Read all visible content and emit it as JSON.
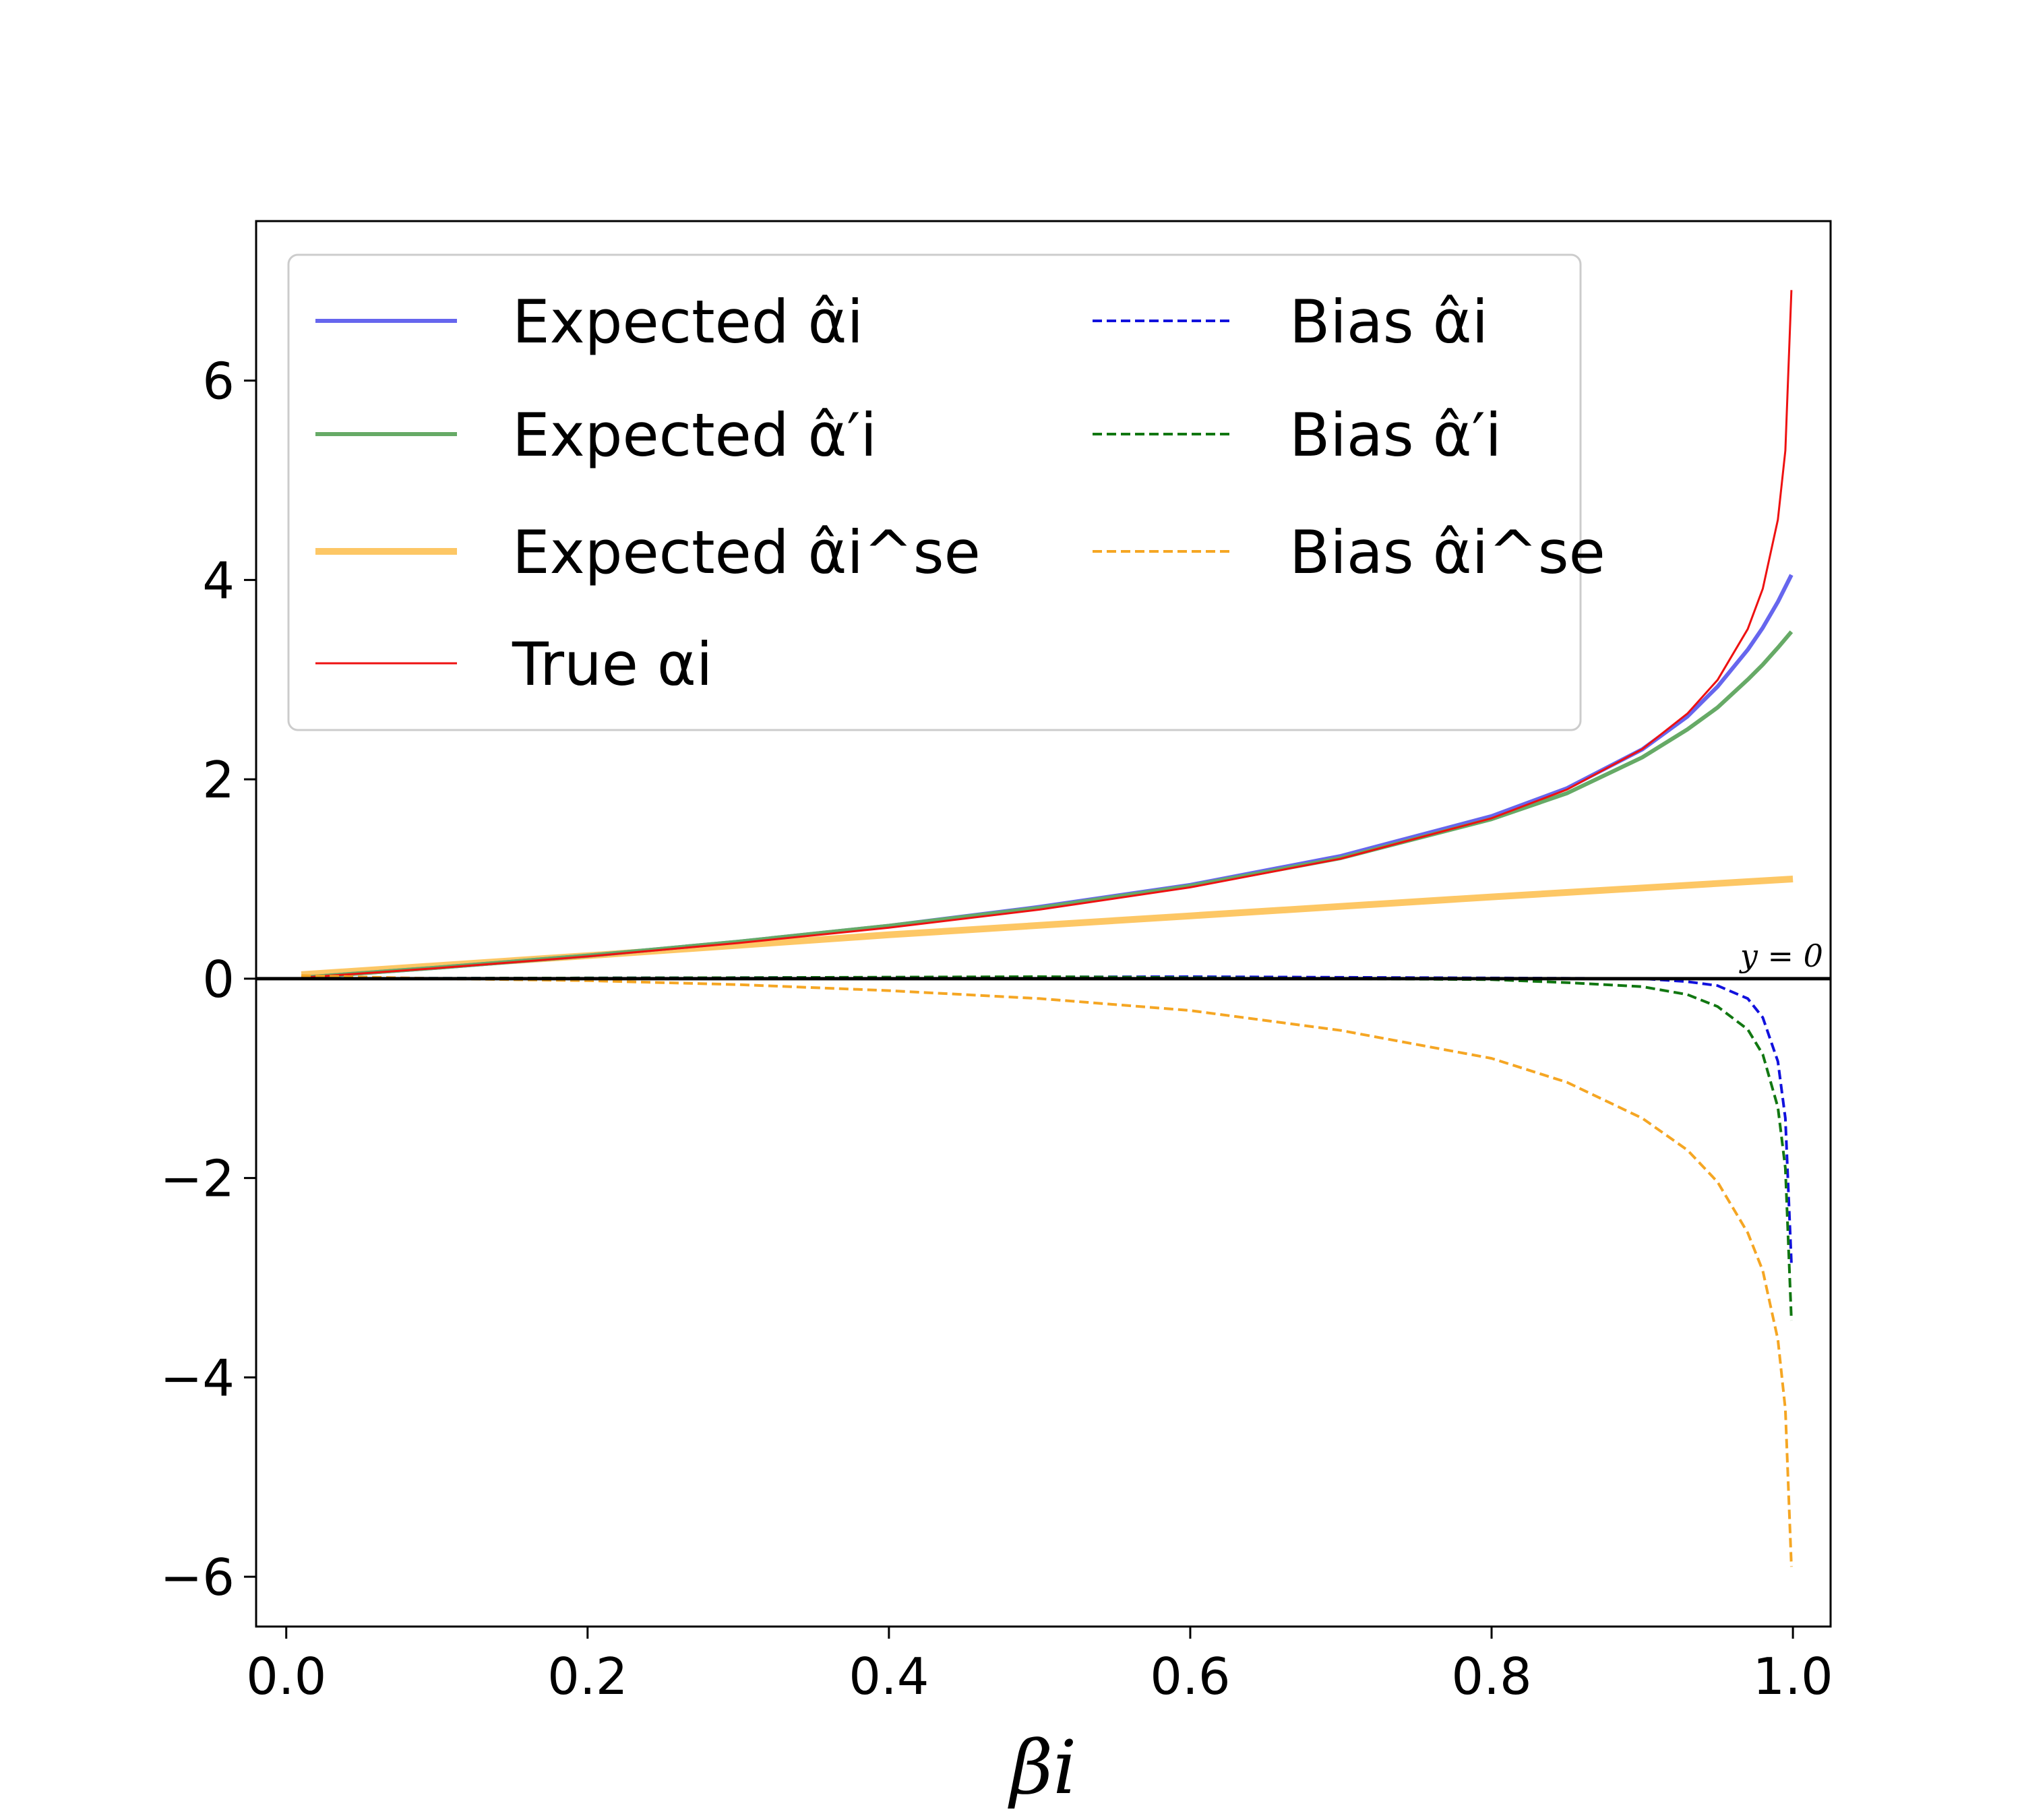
{
  "chart_data": {
    "type": "line",
    "title": "",
    "xlabel": "βi",
    "ylabel": "",
    "xlim": [
      -0.02,
      1.025
    ],
    "ylim": [
      -6.5,
      7.6
    ],
    "grid": false,
    "legend_position": "upper-left",
    "legend_columns": 2,
    "x_ticks": [
      "0.0",
      "0.2",
      "0.4",
      "0.6",
      "0.8",
      "1.0"
    ],
    "y_ticks": [
      "−6",
      "−4",
      "−2",
      "0",
      "2",
      "4",
      "6"
    ],
    "x_tick_values": [
      0.0,
      0.2,
      0.4,
      0.6,
      0.8,
      1.0
    ],
    "y_tick_values": [
      -6,
      -4,
      -2,
      0,
      2,
      4,
      6
    ],
    "reference_line": {
      "y": 0,
      "label": "y = 0",
      "color": "#000000"
    },
    "series": [
      {
        "name": "Expected α̂i",
        "color": "#6666ee",
        "style": "solid",
        "x": [
          0.01,
          0.1,
          0.2,
          0.3,
          0.4,
          0.5,
          0.6,
          0.7,
          0.8,
          0.85,
          0.9,
          0.93,
          0.95,
          0.97,
          0.98,
          0.99,
          0.999
        ],
        "y": [
          0.01,
          0.11,
          0.23,
          0.37,
          0.53,
          0.72,
          0.94,
          1.23,
          1.63,
          1.91,
          2.3,
          2.63,
          2.93,
          3.3,
          3.52,
          3.78,
          4.05
        ]
      },
      {
        "name": "Expected α̂′i",
        "color": "#66aa66",
        "style": "solid",
        "x": [
          0.01,
          0.1,
          0.2,
          0.3,
          0.4,
          0.5,
          0.6,
          0.7,
          0.8,
          0.85,
          0.9,
          0.93,
          0.95,
          0.97,
          0.98,
          0.99,
          0.999
        ],
        "y": [
          0.01,
          0.11,
          0.23,
          0.37,
          0.53,
          0.71,
          0.93,
          1.21,
          1.6,
          1.86,
          2.22,
          2.5,
          2.72,
          3.0,
          3.15,
          3.32,
          3.48
        ]
      },
      {
        "name": "Expected α̂i^se",
        "color": "#fdc765",
        "style": "solid-thick",
        "x": [
          0.01,
          0.2,
          0.4,
          0.6,
          0.8,
          1.0
        ],
        "y": [
          0.04,
          0.23,
          0.44,
          0.63,
          0.82,
          1.0
        ]
      },
      {
        "name": "True αi",
        "color": "#ee1111",
        "style": "solid-thin",
        "x": [
          0.01,
          0.1,
          0.2,
          0.3,
          0.4,
          0.5,
          0.6,
          0.7,
          0.8,
          0.85,
          0.9,
          0.93,
          0.95,
          0.97,
          0.98,
          0.99,
          0.995,
          0.999
        ],
        "y": [
          0.01,
          0.105,
          0.223,
          0.357,
          0.511,
          0.693,
          0.916,
          1.204,
          1.609,
          1.897,
          2.303,
          2.659,
          2.996,
          3.507,
          3.912,
          4.605,
          5.298,
          6.908
        ]
      },
      {
        "name": "Bias α̂i",
        "color": "#1111dd",
        "style": "dashed",
        "x": [
          0.01,
          0.3,
          0.6,
          0.9,
          0.93,
          0.95,
          0.97,
          0.98,
          0.99,
          0.995,
          0.999
        ],
        "y": [
          0.0,
          0.01,
          0.02,
          0.0,
          -0.03,
          -0.07,
          -0.2,
          -0.39,
          -0.83,
          -1.4,
          -2.86
        ]
      },
      {
        "name": "Bias α̂′i",
        "color": "#117711",
        "style": "dashed",
        "x": [
          0.01,
          0.3,
          0.5,
          0.7,
          0.8,
          0.85,
          0.9,
          0.93,
          0.95,
          0.97,
          0.98,
          0.99,
          0.995,
          0.999
        ],
        "y": [
          0.0,
          0.01,
          0.02,
          0.0,
          -0.01,
          -0.04,
          -0.08,
          -0.16,
          -0.28,
          -0.51,
          -0.76,
          -1.29,
          -1.9,
          -3.43
        ]
      },
      {
        "name": "Bias α̂i^se",
        "color": "#f5a623",
        "style": "dashed",
        "x": [
          0.01,
          0.1,
          0.2,
          0.3,
          0.4,
          0.5,
          0.6,
          0.7,
          0.8,
          0.85,
          0.9,
          0.93,
          0.95,
          0.97,
          0.98,
          0.99,
          0.995,
          0.999
        ],
        "y": [
          0.03,
          0.0,
          -0.02,
          -0.06,
          -0.12,
          -0.2,
          -0.32,
          -0.52,
          -0.8,
          -1.04,
          -1.4,
          -1.72,
          -2.04,
          -2.55,
          -2.93,
          -3.62,
          -4.32,
          -5.9
        ]
      }
    ]
  }
}
